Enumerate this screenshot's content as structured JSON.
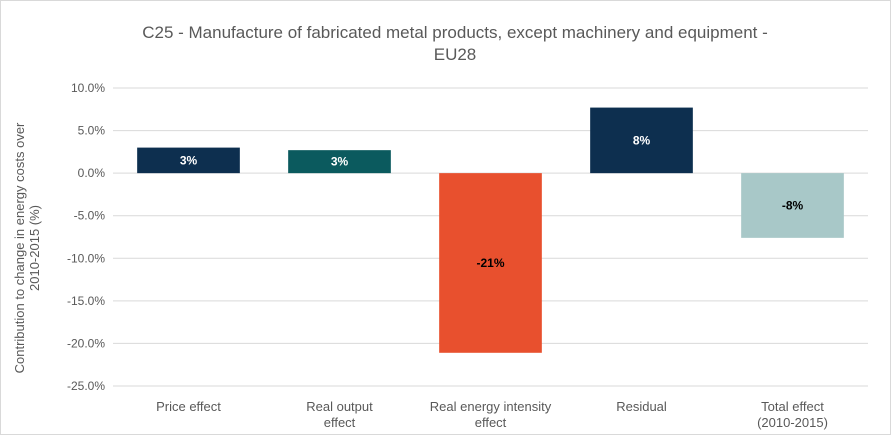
{
  "chart_data": {
    "type": "bar",
    "title_lines": [
      "C25 - Manufacture of fabricated metal products, except machinery and equipment -",
      "EU28"
    ],
    "ylabel_lines": [
      "Contribution to change in energy costs over",
      "2010-2015 (%)"
    ],
    "xlabel": "",
    "ylim": [
      -25,
      10
    ],
    "y_ticks": [
      10,
      5,
      0,
      -5,
      -10,
      -15,
      -20,
      -25
    ],
    "y_tick_labels": [
      "10.0%",
      "5.0%",
      "0.0%",
      "-5.0%",
      "-10.0%",
      "-15.0%",
      "-20.0%",
      "-25.0%"
    ],
    "grid": true,
    "legend": "none",
    "categories": [
      {
        "lines": [
          "Price effect"
        ]
      },
      {
        "lines": [
          "Real output",
          "effect"
        ]
      },
      {
        "lines": [
          "Real energy intensity",
          "effect"
        ]
      },
      {
        "lines": [
          "Residual"
        ]
      },
      {
        "lines": [
          "Total effect",
          "(2010-2015)"
        ]
      }
    ],
    "values": [
      3.0,
      2.7,
      -21.1,
      7.7,
      -7.6
    ],
    "data_labels": [
      "3%",
      "3%",
      "-21%",
      "8%",
      "-8%"
    ],
    "colors": [
      "#0d2f4f",
      "#0b5a5e",
      "#e8502e",
      "#0d2f4f",
      "#a8c8c8"
    ],
    "label_colors": [
      "#ffffff",
      "#ffffff",
      "#000000",
      "#ffffff",
      "#000000"
    ]
  }
}
